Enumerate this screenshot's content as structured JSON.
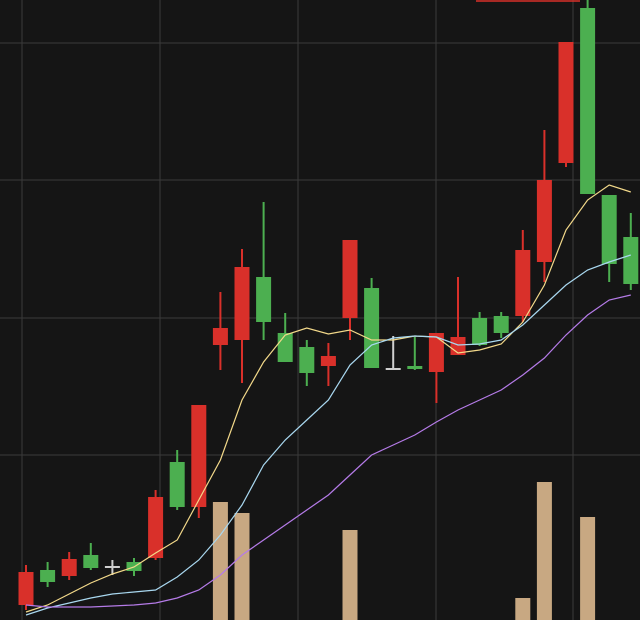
{
  "chart_data": {
    "type": "candlestick",
    "open": [
      15,
      50,
      44,
      65,
      54,
      58,
      62,
      158,
      113,
      275,
      280,
      343,
      287,
      273,
      254,
      302,
      332,
      252,
      254,
      248,
      265,
      302,
      304,
      304,
      358,
      457,
      612,
      425,
      383
    ],
    "high": [
      55,
      58,
      68,
      77,
      60,
      62,
      130,
      170,
      215,
      328,
      371,
      418,
      307,
      280,
      277,
      380,
      342,
      284,
      283,
      287,
      343,
      308,
      308,
      390,
      490,
      578,
      620,
      425,
      407
    ],
    "low": [
      10,
      33,
      40,
      50,
      45,
      44,
      60,
      110,
      102,
      250,
      237,
      280,
      258,
      234,
      234,
      280,
      252,
      252,
      250,
      217,
      265,
      274,
      282,
      298,
      338,
      453,
      426,
      338,
      330
    ],
    "close": [
      48,
      38,
      61,
      52,
      54,
      49,
      123,
      113,
      215,
      292,
      353,
      298,
      258,
      247,
      264,
      380,
      252,
      252,
      251,
      287,
      283,
      275,
      287,
      370,
      440,
      578,
      426,
      356,
      336
    ],
    "volume": [
      null,
      null,
      null,
      null,
      null,
      null,
      null,
      null,
      null,
      118,
      107,
      null,
      null,
      null,
      null,
      90,
      null,
      null,
      null,
      null,
      null,
      null,
      null,
      22,
      138,
      null,
      103,
      null,
      null
    ],
    "up_color": "#d9302a",
    "down_color": "#4caf50",
    "flat_color": "#cfcfcf",
    "volume_color": "#c8a882",
    "series": [
      {
        "color": "#f3d98a",
        "values": [
          8,
          15,
          26,
          37,
          46,
          53,
          67,
          80,
          120,
          160,
          220,
          258,
          285,
          292,
          286,
          290,
          280,
          280,
          284,
          283,
          267,
          270,
          276,
          298,
          335,
          390,
          420,
          435,
          428
        ]
      },
      {
        "color": "#a9d8f0",
        "values": [
          5,
          12,
          17,
          22,
          26,
          28,
          30,
          43,
          60,
          85,
          115,
          155,
          180,
          200,
          220,
          255,
          275,
          282,
          284,
          283,
          275,
          276,
          280,
          295,
          315,
          335,
          350,
          358,
          365
        ]
      },
      {
        "color": "#b57be8",
        "values": [
          15,
          13,
          13,
          13,
          14,
          15,
          17,
          22,
          30,
          45,
          65,
          80,
          95,
          110,
          125,
          145,
          165,
          175,
          185,
          198,
          210,
          220,
          230,
          245,
          262,
          285,
          305,
          320,
          325
        ]
      }
    ],
    "ylim": [
      0,
      620
    ],
    "yticks": [
      165,
      302,
      440,
      577
    ],
    "grid": true
  }
}
